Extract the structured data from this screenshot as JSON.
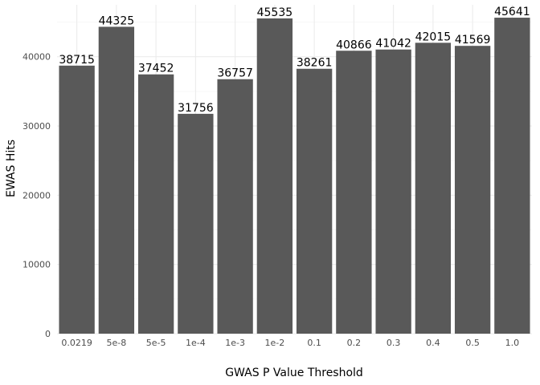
{
  "chart_data": {
    "type": "bar",
    "title": "",
    "xlabel": "GWAS P Value Threshold",
    "ylabel": "EWAS Hits",
    "categories": [
      "0.0219",
      "5e-8",
      "5e-5",
      "1e-4",
      "1e-3",
      "1e-2",
      "0.1",
      "0.2",
      "0.3",
      "0.4",
      "0.5",
      "1.0"
    ],
    "values": [
      38715,
      44325,
      37452,
      31756,
      36757,
      45535,
      38261,
      40866,
      41042,
      42015,
      41569,
      45641
    ],
    "data_labels": [
      "38715",
      "44325",
      "37452",
      "31756",
      "36757",
      "45535",
      "38261",
      "40866",
      "41042",
      "42015",
      "41569",
      "45641"
    ],
    "ylim": [
      0,
      47500
    ],
    "y_ticks": [
      0,
      10000,
      20000,
      30000,
      40000
    ],
    "y_tick_labels": [
      "0",
      "10000",
      "20000",
      "30000",
      "40000"
    ],
    "grid": true,
    "legend": "none",
    "colors": {
      "bar": "#595959",
      "grid_major": "#ebebeb",
      "grid_minor": "#f5f5f5",
      "background": "#ffffff"
    }
  }
}
